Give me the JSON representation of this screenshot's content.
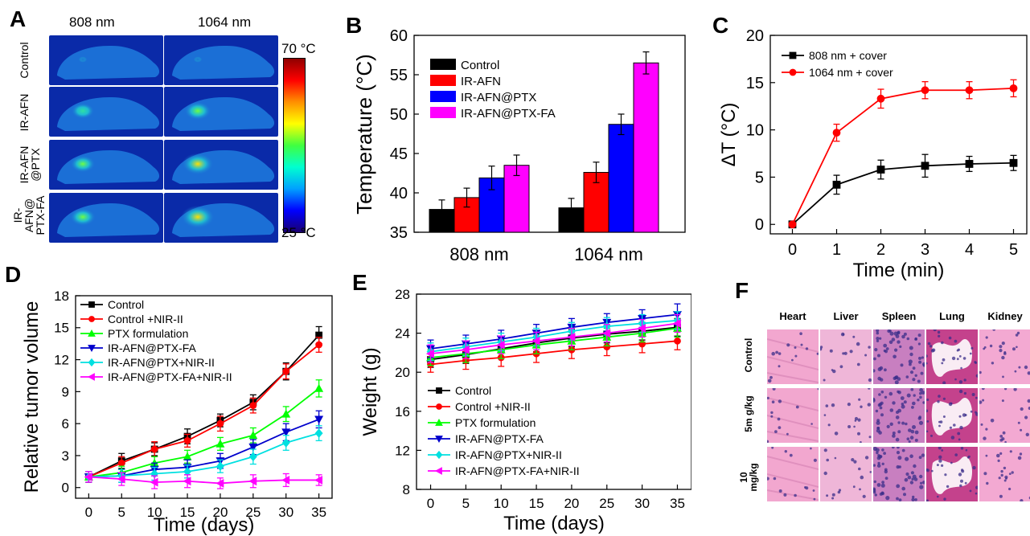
{
  "panels": {
    "A": {
      "label": "A",
      "columns": [
        "808 nm",
        "1064 nm"
      ],
      "rows": [
        "Control",
        "IR-AFN",
        "IR-AFN\n@PTX",
        "IR-\nAFN@\nPTX-FA"
      ],
      "scale_max": "70 °C",
      "scale_min": "25 °C",
      "hotspot_intensity": [
        [
          0.0,
          0.0
        ],
        [
          0.35,
          0.55
        ],
        [
          0.45,
          0.8
        ],
        [
          0.5,
          0.9
        ]
      ],
      "colors": {
        "body": "#1b6fd6",
        "background": "#0a2aa8"
      }
    },
    "B": {
      "label": "B",
      "chart_data": {
        "type": "bar",
        "categories": [
          "808 nm",
          "1064 nm"
        ],
        "series": [
          {
            "name": "Control",
            "values": [
              37.9,
              38.1
            ],
            "errors": [
              1.2,
              1.2
            ],
            "color": "#000000"
          },
          {
            "name": "IR-AFN",
            "values": [
              39.4,
              42.6
            ],
            "errors": [
              1.2,
              1.3
            ],
            "color": "#ff0000"
          },
          {
            "name": "IR-AFN@PTX",
            "values": [
              41.9,
              48.7
            ],
            "errors": [
              1.5,
              1.3
            ],
            "color": "#0000ff"
          },
          {
            "name": "IR-AFN@PTX-FA",
            "values": [
              43.5,
              56.5
            ],
            "errors": [
              1.3,
              1.4
            ],
            "color": "#ff00ff"
          }
        ],
        "ylabel": "Temperature (°C)",
        "ylim": [
          35,
          60
        ],
        "yticks": [
          35,
          40,
          45,
          50,
          55,
          60
        ],
        "legend": "top-left"
      }
    },
    "C": {
      "label": "C",
      "chart_data": {
        "type": "line",
        "x": [
          0,
          1,
          2,
          3,
          4,
          5
        ],
        "series": [
          {
            "name": "808 nm + cover",
            "values": [
              0,
              4.2,
              5.8,
              6.2,
              6.4,
              6.5
            ],
            "errors": [
              0.2,
              1.0,
              1.0,
              1.2,
              0.8,
              0.8
            ],
            "color": "#000000",
            "marker": "square"
          },
          {
            "name": "1064 nm + cover",
            "values": [
              0,
              9.7,
              13.3,
              14.2,
              14.2,
              14.4
            ],
            "errors": [
              0.2,
              0.9,
              1.0,
              0.9,
              0.9,
              0.9
            ],
            "color": "#ff0000",
            "marker": "circle"
          }
        ],
        "xlabel": "Time (min)",
        "ylabel": "ΔT (°C)",
        "xlim": [
          -0.5,
          5.3
        ],
        "ylim": [
          -1,
          20
        ],
        "xticks": [
          0,
          1,
          2,
          3,
          4,
          5
        ],
        "yticks": [
          0,
          5,
          10,
          15,
          20
        ],
        "legend": "top-left"
      }
    },
    "D": {
      "label": "D",
      "chart_data": {
        "type": "line",
        "x": [
          0,
          5,
          10,
          15,
          20,
          25,
          30,
          35
        ],
        "series": [
          {
            "name": "Control",
            "values": [
              1.0,
              2.5,
              3.6,
              4.8,
              6.3,
              8.0,
              10.9,
              14.3
            ],
            "errors": [
              0.5,
              0.7,
              0.6,
              0.7,
              0.6,
              0.7,
              0.8,
              0.8
            ],
            "color": "#000000",
            "marker": "square"
          },
          {
            "name": "Control +NIR-II",
            "values": [
              1.0,
              2.3,
              3.6,
              4.4,
              6.0,
              7.7,
              10.9,
              13.4
            ],
            "errors": [
              0.5,
              0.6,
              0.7,
              0.6,
              0.7,
              0.7,
              0.7,
              0.7
            ],
            "color": "#ff0000",
            "marker": "circle"
          },
          {
            "name": "PTX formulation",
            "values": [
              1.0,
              1.4,
              2.3,
              2.9,
              4.1,
              4.9,
              6.9,
              9.3
            ],
            "errors": [
              0.5,
              0.6,
              0.6,
              0.6,
              0.6,
              0.7,
              0.7,
              0.8
            ],
            "color": "#00ff00",
            "marker": "triangle-up"
          },
          {
            "name": "IR-AFN@PTX-FA",
            "values": [
              1.0,
              1.1,
              1.7,
              1.9,
              2.5,
              3.8,
              5.2,
              6.4
            ],
            "errors": [
              0.5,
              0.6,
              0.6,
              0.7,
              0.7,
              0.7,
              0.8,
              0.8
            ],
            "color": "#0000cc",
            "marker": "triangle-down"
          },
          {
            "name": "IR-AFN@PTX+NIR-II",
            "values": [
              1.0,
              1.1,
              1.3,
              1.5,
              2.0,
              2.9,
              4.2,
              5.1
            ],
            "errors": [
              0.5,
              0.6,
              0.6,
              0.6,
              0.6,
              0.7,
              0.7,
              0.7
            ],
            "color": "#00e0e0",
            "marker": "diamond"
          },
          {
            "name": "IR-AFN@PTX-FA+NIR-II",
            "values": [
              1.0,
              0.8,
              0.5,
              0.6,
              0.4,
              0.6,
              0.7,
              0.7
            ],
            "errors": [
              0.5,
              0.6,
              0.6,
              0.6,
              0.5,
              0.6,
              0.6,
              0.5
            ],
            "color": "#ff00ff",
            "marker": "triangle-left"
          }
        ],
        "xlabel": "Time (days)",
        "ylabel": "Relative tumor volume",
        "xlim": [
          -2,
          37
        ],
        "ylim": [
          -1,
          18
        ],
        "xticks": [
          0,
          5,
          10,
          15,
          20,
          25,
          30,
          35
        ],
        "yticks": [
          0,
          3,
          6,
          9,
          12,
          15,
          18
        ],
        "legend": "top-left"
      }
    },
    "E": {
      "label": "E",
      "chart_data": {
        "type": "line",
        "x": [
          0,
          5,
          10,
          15,
          20,
          25,
          30,
          35
        ],
        "series": [
          {
            "name": "Control",
            "values": [
              21.3,
              21.8,
              22.4,
              23.0,
              23.5,
              23.9,
              24.2,
              24.6
            ],
            "errors": [
              0.8,
              0.9,
              0.9,
              0.9,
              0.9,
              0.9,
              0.9,
              0.9
            ],
            "color": "#000000",
            "marker": "square"
          },
          {
            "name": "Control +NIR-II",
            "values": [
              20.8,
              21.2,
              21.5,
              21.9,
              22.3,
              22.6,
              22.9,
              23.2
            ],
            "errors": [
              0.8,
              0.9,
              0.9,
              0.9,
              0.9,
              0.9,
              0.9,
              0.9
            ],
            "color": "#ff0000",
            "marker": "circle"
          },
          {
            "name": "PTX formulation",
            "values": [
              21.5,
              21.9,
              22.3,
              22.8,
              23.2,
              23.6,
              24.0,
              24.5
            ],
            "errors": [
              0.8,
              0.9,
              0.9,
              0.9,
              0.9,
              0.9,
              0.9,
              0.9
            ],
            "color": "#00ff00",
            "marker": "triangle-up"
          },
          {
            "name": "IR-AFN@PTX-FA",
            "values": [
              22.4,
              22.9,
              23.4,
              24.0,
              24.6,
              25.1,
              25.5,
              25.9
            ],
            "errors": [
              0.9,
              0.9,
              0.9,
              0.9,
              0.9,
              0.9,
              0.9,
              1.1
            ],
            "color": "#0000cc",
            "marker": "triangle-down"
          },
          {
            "name": "IR-AFN@PTX+NIR-II",
            "values": [
              22.1,
              22.6,
              23.1,
              23.6,
              24.2,
              24.7,
              25.0,
              25.3
            ],
            "errors": [
              0.9,
              0.9,
              0.9,
              0.9,
              0.9,
              0.9,
              0.9,
              0.9
            ],
            "color": "#00e0e0",
            "marker": "diamond"
          },
          {
            "name": "IR-AFN@PTX-FA+NIR-II",
            "values": [
              21.9,
              22.3,
              22.8,
              23.2,
              23.6,
              24.0,
              24.5,
              25.0
            ],
            "errors": [
              0.9,
              0.9,
              0.9,
              0.9,
              0.9,
              0.9,
              0.9,
              0.9
            ],
            "color": "#ff00ff",
            "marker": "triangle-left"
          }
        ],
        "xlabel": "Time (days)",
        "ylabel": "Weight (g)",
        "xlim": [
          -2,
          37
        ],
        "ylim": [
          8,
          28
        ],
        "xticks": [
          0,
          5,
          10,
          15,
          20,
          25,
          30,
          35
        ],
        "yticks": [
          8,
          12,
          16,
          20,
          24,
          28
        ],
        "legend": "bottom-left"
      }
    },
    "F": {
      "label": "F",
      "columns": [
        "Heart",
        "Liver",
        "Spleen",
        "Lung",
        "Kidney"
      ],
      "rows": [
        "Control",
        "5m g/kg",
        "10\nmg/kg"
      ],
      "tissue_colors": [
        "#f2a7cf",
        "#efb6d8",
        "#c87fc0",
        "#c4428c",
        "#f3a9d2"
      ]
    }
  }
}
